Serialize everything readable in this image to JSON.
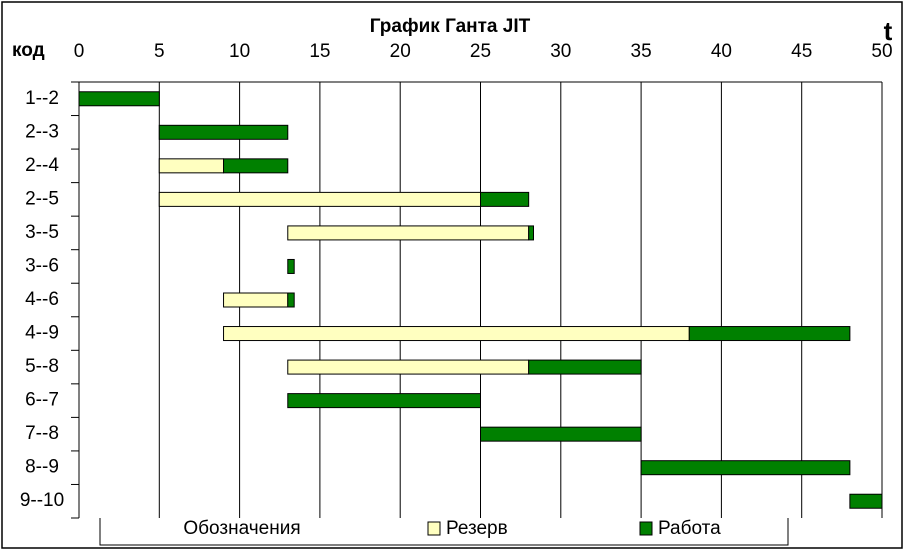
{
  "chart_data": {
    "type": "gantt",
    "title": "График Ганта JIT",
    "y_label": "код",
    "x_label": "t",
    "legend_title": "Обозначения",
    "categories": [
      "1--2",
      "2--3",
      "2--4",
      "2--5",
      "3--5",
      "3--6",
      "4--6",
      "4--9",
      "5--8",
      "6--7",
      "7--8",
      "8--9",
      "9--10"
    ],
    "starts": [
      0,
      5,
      5,
      5,
      13,
      13,
      9,
      9,
      13,
      13,
      25,
      35,
      48
    ],
    "series": [
      {
        "name": "Резерв",
        "color": "#ffffc0",
        "values": [
          0,
          0,
          4,
          20,
          15,
          0,
          4,
          29,
          15,
          0,
          0,
          0,
          0
        ]
      },
      {
        "name": "Работа",
        "color": "#008000",
        "values": [
          5,
          8,
          4,
          3,
          0.3,
          0.4,
          0.4,
          10,
          7,
          12,
          10,
          13,
          2
        ]
      }
    ],
    "xlim": [
      0,
      50
    ],
    "xticks": [
      0,
      5,
      10,
      15,
      20,
      25,
      30,
      35,
      40,
      45,
      50
    ],
    "grid": true
  }
}
